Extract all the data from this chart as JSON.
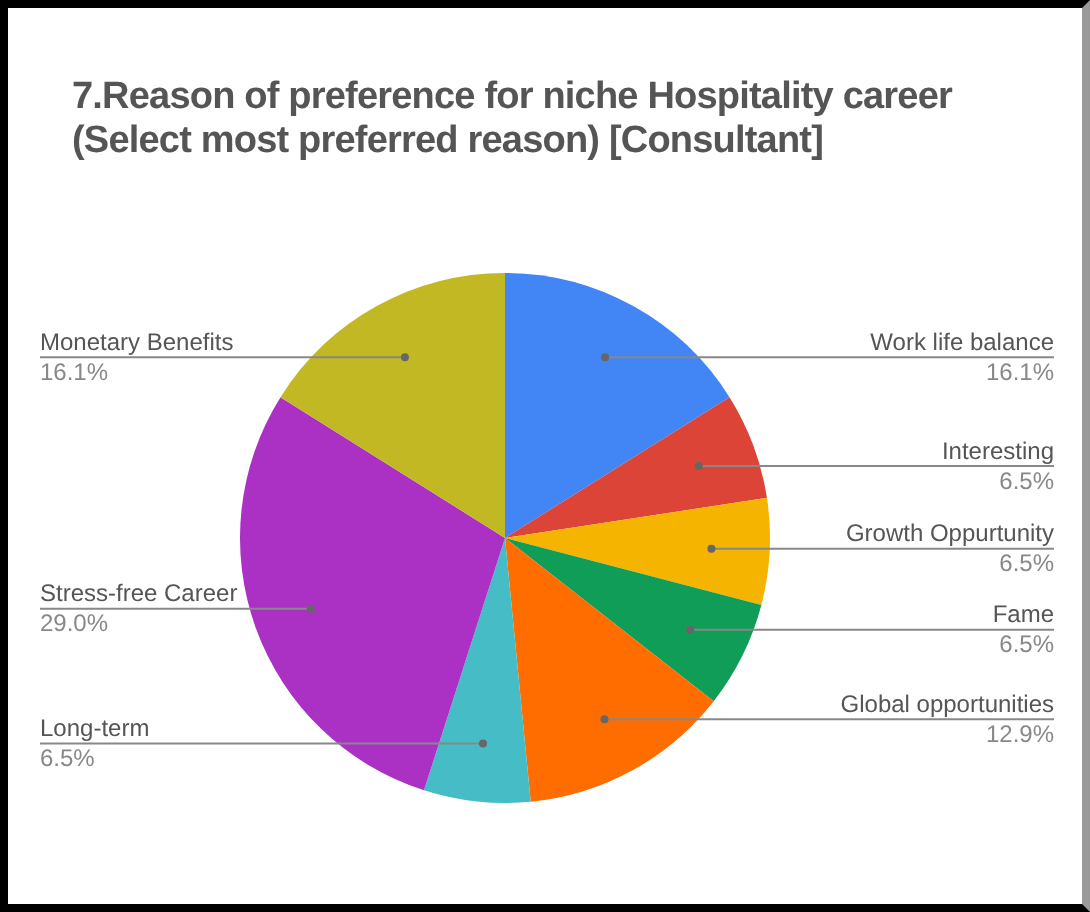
{
  "chart_data": {
    "type": "pie",
    "title": "7.Reason of preference for niche Hospitality career (Select most preferred reason) [Consultant]",
    "categories": [
      "Work life balance",
      "Interesting",
      "Growth Oppurtunity",
      "Fame",
      "Global opportunities",
      "Long-term",
      "Stress-free Career",
      "Monetary Benefits"
    ],
    "values": [
      16.1,
      6.5,
      6.5,
      6.5,
      12.9,
      6.5,
      29.0,
      16.1
    ],
    "value_labels": [
      "16.1%",
      "6.5%",
      "6.5%",
      "6.5%",
      "12.9%",
      "6.5%",
      "29.0%",
      "16.1%"
    ],
    "colors": [
      "#4285f4",
      "#db4437",
      "#f4b400",
      "#0f9d58",
      "#ff6d01",
      "#46bdc6",
      "#ab30c4",
      "#c2b824"
    ],
    "legend": false
  }
}
